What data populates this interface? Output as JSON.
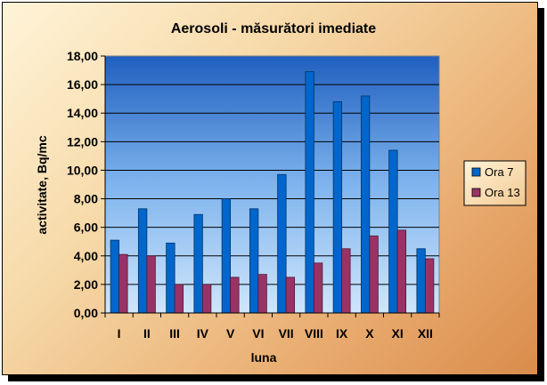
{
  "chart_data": {
    "type": "bar",
    "title": "Aerosoli - măsurători imediate",
    "xlabel": "luna",
    "ylabel": "activitate, Bq/mc",
    "ylim": [
      0,
      18
    ],
    "yticks": [
      "0,00",
      "2,00",
      "4,00",
      "6,00",
      "8,00",
      "10,00",
      "12,00",
      "14,00",
      "16,00",
      "18,00"
    ],
    "categories": [
      "I",
      "II",
      "III",
      "IV",
      "V",
      "VI",
      "VII",
      "VIII",
      "IX",
      "X",
      "XI",
      "XII"
    ],
    "series": [
      {
        "name": "Ora 7",
        "color": "#0066cc",
        "values": [
          5.1,
          7.3,
          4.9,
          6.9,
          8.0,
          7.3,
          9.7,
          16.9,
          14.8,
          15.2,
          11.4,
          4.5
        ]
      },
      {
        "name": "Ora 13",
        "color": "#993366",
        "values": [
          4.1,
          4.0,
          2.0,
          2.0,
          2.5,
          2.7,
          2.5,
          3.5,
          4.5,
          5.4,
          5.8,
          3.8
        ]
      }
    ],
    "grid": true,
    "legend": "right"
  }
}
